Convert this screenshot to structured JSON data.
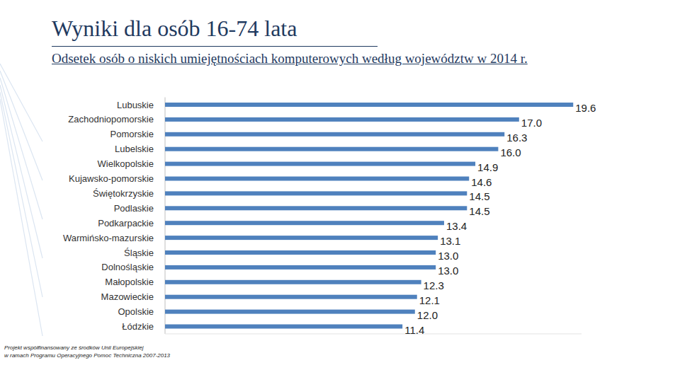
{
  "chart_data": {
    "type": "bar",
    "orientation": "horizontal",
    "title": "Wyniki dla osób 16-74 lata",
    "subtitle": "Odsetek osób o niskich umiejętnościach komputerowych według województw w 2014 r.",
    "categories": [
      "Lubuskie",
      "Zachodniopomorskie",
      "Pomorskie",
      "Lubelskie",
      "Wielkopolskie",
      "Kujawsko-pomorskie",
      "Świętokrzyskie",
      "Podlaskie",
      "Podkarpackie",
      "Warmińsko-mazurskie",
      "Śląskie",
      "Dolnośląskie",
      "Małopolskie",
      "Mazowieckie",
      "Opolskie",
      "Łódzkie"
    ],
    "values": [
      19.6,
      17.0,
      16.3,
      16.0,
      14.9,
      14.6,
      14.5,
      14.5,
      13.4,
      13.1,
      13.0,
      13.0,
      12.3,
      12.1,
      12.0,
      11.4
    ],
    "value_labels": [
      "19.6",
      "17.0",
      "16.3",
      "16.0",
      "14.9",
      "14.6",
      "14.5",
      "14.5",
      "13.4",
      "13.1",
      "13.0",
      "13.0",
      "12.3",
      "12.1",
      "12.0",
      "11.4"
    ],
    "color": "#4f81bd",
    "xlim": [
      0,
      20
    ],
    "data_labels": true,
    "tick_labels": "y",
    "grid": false
  },
  "footer": [
    "Projekt współfinansowany ze środków Unii Europejskiej",
    "w ramach Programu Operacyjnego Pomoc Techniczna 2007-2013"
  ]
}
